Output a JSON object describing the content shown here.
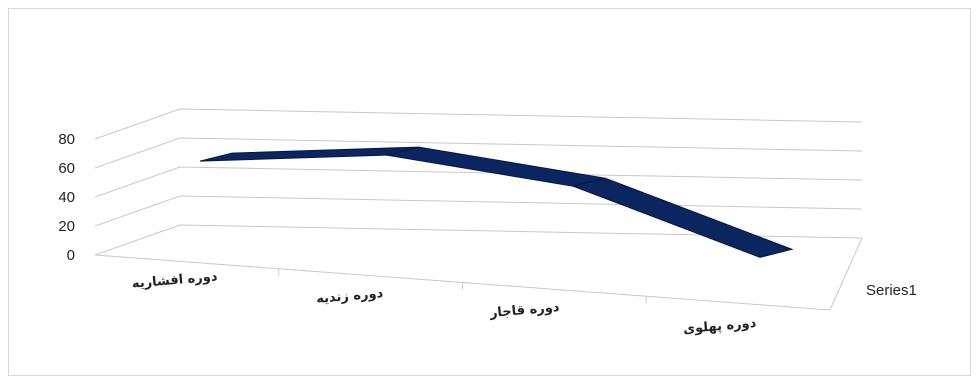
{
  "chart_data": {
    "type": "line",
    "style": "3d-ribbon",
    "title": "",
    "xlabel": "",
    "ylabel": "",
    "ylim": [
      0,
      80
    ],
    "yticks": [
      "0",
      "20",
      "40",
      "60",
      "80"
    ],
    "categories": [
      "دوره افشاریه",
      "دوره زندیه",
      "دوره قاجار",
      "دوره پهلوی"
    ],
    "series": [
      {
        "name": "Series1",
        "values": [
          50,
          66,
          55,
          15
        ],
        "color": "#0b2560"
      }
    ],
    "grid": true,
    "legend": "none"
  }
}
